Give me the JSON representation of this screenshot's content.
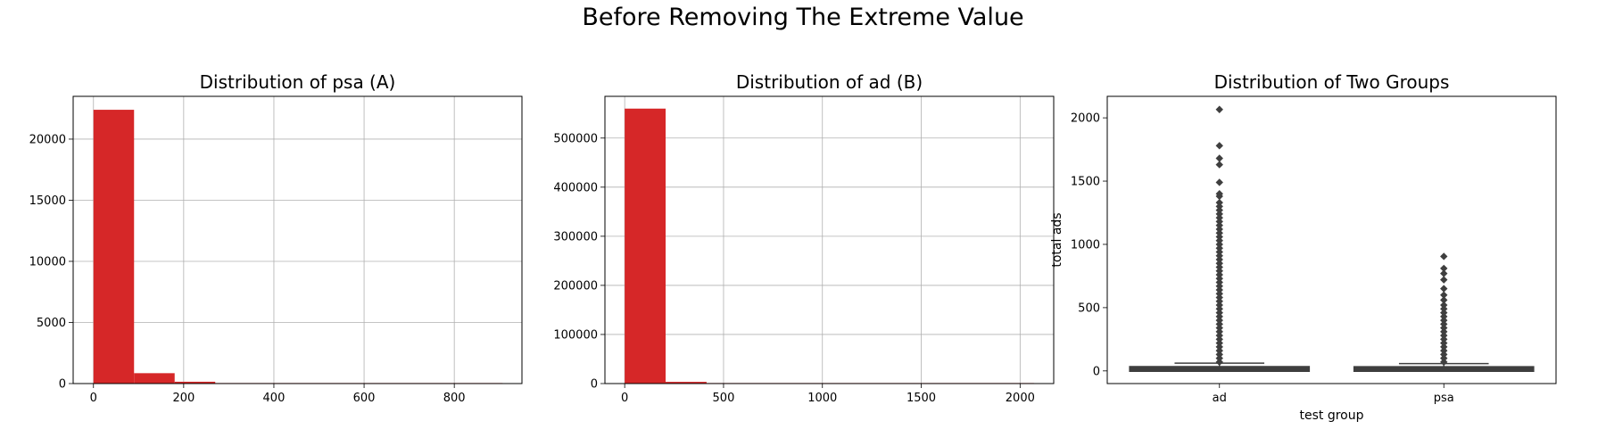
{
  "suptitle": "Before Removing The Extreme Value",
  "chart_data": [
    {
      "type": "bar",
      "subtype": "histogram",
      "title": "Distribution of psa (A)",
      "xlabel": "",
      "ylabel": "",
      "color": "#d62728",
      "grid": true,
      "xlim": [
        -45,
        950
      ],
      "ylim": [
        0,
        23500
      ],
      "xticks": [
        0,
        200,
        400,
        600,
        800
      ],
      "yticks": [
        0,
        5000,
        10000,
        15000,
        20000
      ],
      "bins": [
        {
          "x0": 0,
          "x1": 90,
          "count": 22400
        },
        {
          "x0": 90,
          "x1": 180,
          "count": 850
        },
        {
          "x0": 180,
          "x1": 270,
          "count": 150
        },
        {
          "x0": 270,
          "x1": 360,
          "count": 40
        },
        {
          "x0": 360,
          "x1": 450,
          "count": 12
        },
        {
          "x0": 450,
          "x1": 540,
          "count": 5
        },
        {
          "x0": 540,
          "x1": 630,
          "count": 3
        },
        {
          "x0": 630,
          "x1": 720,
          "count": 2
        },
        {
          "x0": 720,
          "x1": 810,
          "count": 2
        },
        {
          "x0": 810,
          "x1": 907,
          "count": 1
        }
      ]
    },
    {
      "type": "bar",
      "subtype": "histogram",
      "title": "Distribution of ad (B)",
      "xlabel": "",
      "ylabel": "",
      "color": "#d62728",
      "grid": true,
      "xlim": [
        -100,
        2170
      ],
      "ylim": [
        0,
        585000
      ],
      "xticks": [
        0,
        500,
        1000,
        1500,
        2000
      ],
      "yticks": [
        0,
        100000,
        200000,
        300000,
        400000,
        500000
      ],
      "bins": [
        {
          "x0": 0,
          "x1": 207,
          "count": 560000
        },
        {
          "x0": 207,
          "x1": 414,
          "count": 3500
        },
        {
          "x0": 414,
          "x1": 621,
          "count": 300
        },
        {
          "x0": 621,
          "x1": 828,
          "count": 60
        },
        {
          "x0": 828,
          "x1": 1035,
          "count": 15
        },
        {
          "x0": 1035,
          "x1": 1242,
          "count": 8
        },
        {
          "x0": 1242,
          "x1": 1449,
          "count": 4
        },
        {
          "x0": 1449,
          "x1": 1656,
          "count": 3
        },
        {
          "x0": 1656,
          "x1": 1863,
          "count": 2
        },
        {
          "x0": 1863,
          "x1": 2070,
          "count": 1
        }
      ]
    },
    {
      "type": "box",
      "title": "Distribution of Two Groups",
      "xlabel": "test group",
      "ylabel": "total ads",
      "grid": false,
      "ylim": [
        -100,
        2170
      ],
      "yticks": [
        0,
        500,
        1000,
        1500,
        2000
      ],
      "color": "#3f3f3f",
      "groups": [
        {
          "name": "ad",
          "min": 1,
          "q1": 4,
          "median": 13,
          "q3": 27,
          "whisker_high": 61,
          "outliers": [
            2066,
            1780,
            1680,
            1630,
            1490,
            1400,
            1380,
            1330,
            1300,
            1270,
            1240,
            1210,
            1180,
            1150,
            1120,
            1090,
            1060,
            1030,
            1000,
            970,
            940,
            910,
            880,
            850,
            820,
            790,
            760,
            730,
            700,
            670,
            640,
            610,
            580,
            550,
            520,
            490,
            460,
            430,
            400,
            370,
            340,
            310,
            280,
            250,
            220,
            190,
            160,
            130,
            100,
            70
          ]
        },
        {
          "name": "psa",
          "min": 1,
          "q1": 4,
          "median": 12,
          "q3": 26,
          "whisker_high": 58,
          "outliers": [
            905,
            810,
            770,
            720,
            650,
            600,
            560,
            520,
            490,
            460,
            430,
            400,
            370,
            340,
            310,
            280,
            250,
            220,
            190,
            160,
            130,
            100,
            70
          ]
        }
      ]
    }
  ]
}
